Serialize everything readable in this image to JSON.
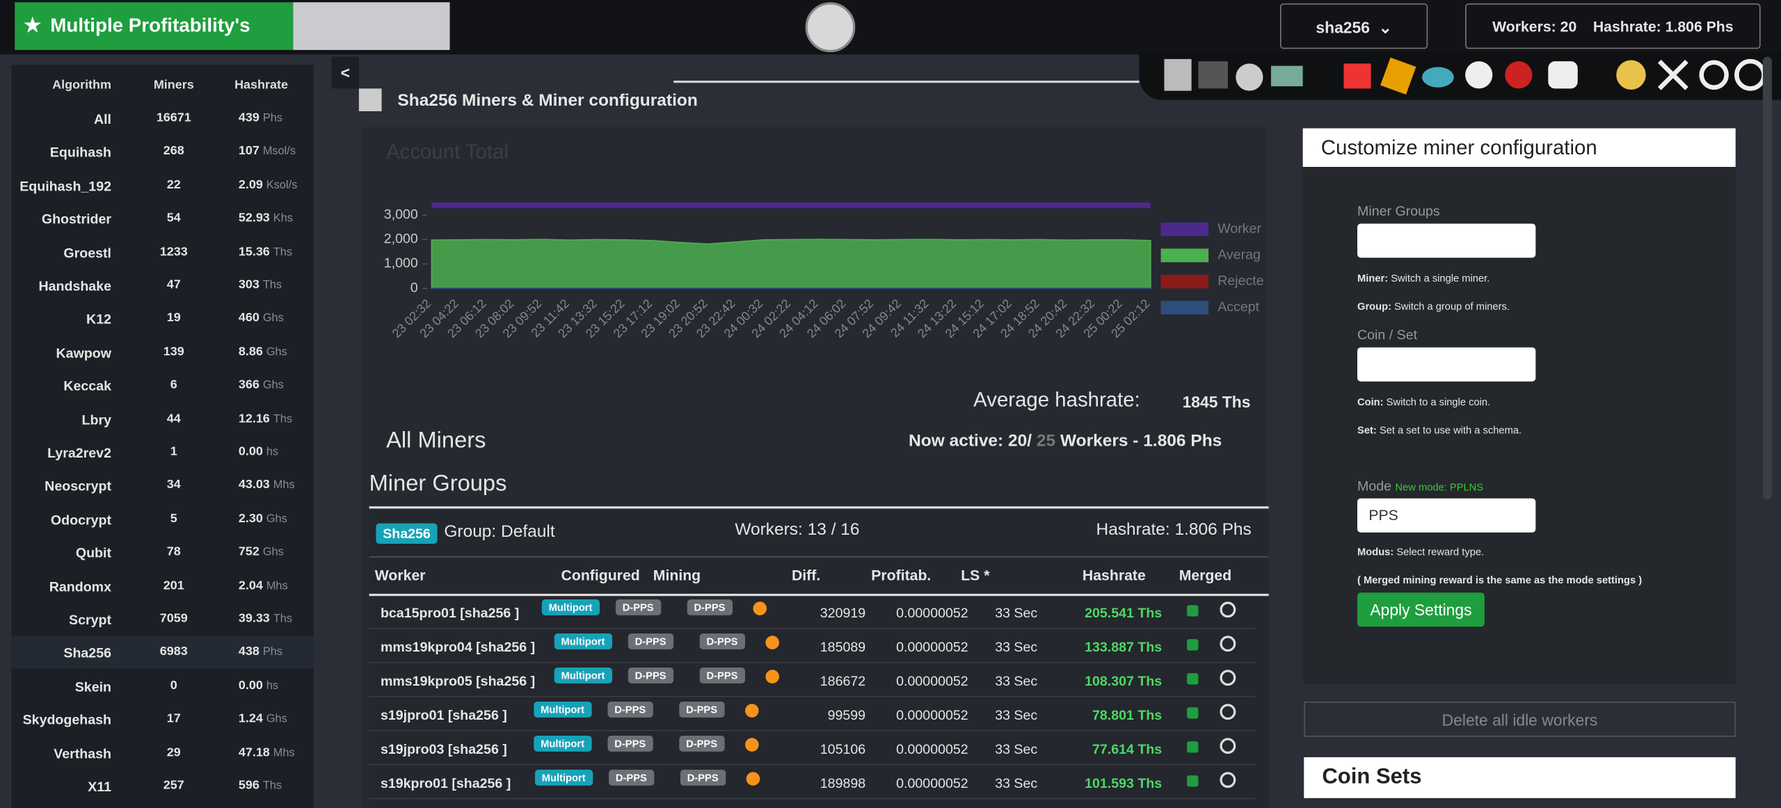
{
  "header": {
    "brand": "Multiple Profitability's BTC/",
    "algo_select": "sha256",
    "workers": "Workers: 20",
    "hashrate": "Hashrate: 1.806 Phs",
    "collapse": "<"
  },
  "sidebar": {
    "columns": [
      "Algorithm",
      "Miners",
      "Hashrate"
    ],
    "rows": [
      [
        "All",
        "16671",
        "439",
        "Phs"
      ],
      [
        "Equihash",
        "268",
        "107",
        "Msol/s"
      ],
      [
        "Equihash_192",
        "22",
        "2.09",
        "Ksol/s"
      ],
      [
        "Ghostrider",
        "54",
        "52.93",
        "Khs"
      ],
      [
        "Groestl",
        "1233",
        "15.36",
        "Ths"
      ],
      [
        "Handshake",
        "47",
        "303",
        "Ths"
      ],
      [
        "K12",
        "19",
        "460",
        "Ghs"
      ],
      [
        "Kawpow",
        "139",
        "8.86",
        "Ghs"
      ],
      [
        "Keccak",
        "6",
        "366",
        "Ghs"
      ],
      [
        "Lbry",
        "44",
        "12.16",
        "Ths"
      ],
      [
        "Lyra2rev2",
        "1",
        "0.00",
        "hs"
      ],
      [
        "Neoscrypt",
        "34",
        "43.03",
        "Mhs"
      ],
      [
        "Odocrypt",
        "5",
        "2.30",
        "Ghs"
      ],
      [
        "Qubit",
        "78",
        "752",
        "Ghs"
      ],
      [
        "Randomx",
        "201",
        "2.04",
        "Mhs"
      ],
      [
        "Scrypt",
        "7059",
        "39.33",
        "Ths"
      ],
      [
        "Sha256",
        "6983",
        "438",
        "Phs"
      ],
      [
        "Skein",
        "0",
        "0.00",
        "hs"
      ],
      [
        "Skydogehash",
        "17",
        "1.24",
        "Ghs"
      ],
      [
        "Verthash",
        "29",
        "47.18",
        "Mhs"
      ],
      [
        "X11",
        "257",
        "596",
        "Ths"
      ]
    ]
  },
  "section_title": "Sha256 Miners & Miner configuration",
  "chart_data": {
    "type": "area",
    "title": "Account Total",
    "categories": [
      "23 02:32",
      "23 04:22",
      "23 06:12",
      "23 08:02",
      "23 09:52",
      "23 11:42",
      "23 13:32",
      "23 15:22",
      "23 17:12",
      "23 19:02",
      "23 20:52",
      "23 22:42",
      "24 00:32",
      "24 02:22",
      "24 04:12",
      "24 06:02",
      "24 07:52",
      "24 09:42",
      "24 11:32",
      "24 13:22",
      "24 15:12",
      "24 17:02",
      "24 18:52",
      "24 20:42",
      "24 22:32",
      "25 00:22",
      "25 02:12"
    ],
    "series": [
      {
        "name": "Worker",
        "color": "#4b2a8c",
        "values": [
          3400,
          3400,
          3400,
          3400,
          3400,
          3400,
          3400,
          3400,
          3400,
          3400,
          3400,
          3400,
          3400,
          3400,
          3400,
          3400,
          3400,
          3400,
          3400,
          3400,
          3400,
          3400,
          3400,
          3400,
          3400,
          3400,
          3400
        ]
      },
      {
        "name": "Averag",
        "color": "#4caf50",
        "values": [
          1980,
          1990,
          2000,
          1990,
          2010,
          1980,
          2000,
          1990,
          1960,
          1880,
          1820,
          1900,
          1990,
          2000,
          2010,
          2000,
          1990,
          2000,
          2010,
          1990,
          2000,
          1990,
          2000,
          1980,
          1990,
          1990,
          1960
        ]
      },
      {
        "name": "Rejecte",
        "color": "#8b1a1a",
        "values": [
          0,
          0,
          0,
          0,
          0,
          0,
          0,
          0,
          0,
          0,
          0,
          0,
          0,
          0,
          0,
          0,
          0,
          0,
          0,
          0,
          0,
          0,
          0,
          0,
          0,
          0,
          0
        ]
      },
      {
        "name": "Accept",
        "color": "#2d4f7c",
        "values": [
          0,
          0,
          0,
          0,
          0,
          0,
          0,
          0,
          0,
          0,
          0,
          0,
          0,
          0,
          0,
          0,
          0,
          0,
          0,
          0,
          0,
          0,
          0,
          0,
          0,
          0,
          0
        ]
      }
    ],
    "ylim": [
      0,
      3500
    ],
    "yticks": [
      0,
      {
        "value": 1000,
        "label": "1,000"
      },
      {
        "value": 2000,
        "label": "2,000"
      },
      {
        "value": 3000,
        "label": "3,000"
      }
    ]
  },
  "summary": {
    "avg_label": "Average hashrate:",
    "avg_value": "1845 Ths",
    "all_miners": "All Miners",
    "active_a": "Now active: 20/",
    "active_b": "25",
    "active_c": "Workers - 1.806 Phs",
    "groups_title": "Miner Groups"
  },
  "group": {
    "badge": "Sha256",
    "name": "Group: Default",
    "workers": "Workers: 13 / 16",
    "hashrate": "Hashrate: 1.806 Phs",
    "columns": [
      "Worker",
      "Configured",
      "Mining",
      "Diff.",
      "Profitab.",
      "LS *",
      "Hashrate",
      "Merged"
    ],
    "rows": [
      [
        "bca15pro01 [sha256 ]",
        "Multiport",
        "D-PPS",
        "D-PPS",
        "320919",
        "0.00000052",
        "33 Sec",
        "205.541 Ths"
      ],
      [
        "mms19kpro04 [sha256 ]",
        "Multiport",
        "D-PPS",
        "D-PPS",
        "185089",
        "0.00000052",
        "33 Sec",
        "133.887 Ths"
      ],
      [
        "mms19kpro05 [sha256 ]",
        "Multiport",
        "D-PPS",
        "D-PPS",
        "186672",
        "0.00000052",
        "33 Sec",
        "108.307 Ths"
      ],
      [
        "s19jpro01 [sha256 ]",
        "Multiport",
        "D-PPS",
        "D-PPS",
        "99599",
        "0.00000052",
        "33 Sec",
        "78.801 Ths"
      ],
      [
        "s19jpro03 [sha256 ]",
        "Multiport",
        "D-PPS",
        "D-PPS",
        "105106",
        "0.00000052",
        "33 Sec",
        "77.614 Ths"
      ],
      [
        "s19kpro01 [sha256 ]",
        "Multiport",
        "D-PPS",
        "D-PPS",
        "189898",
        "0.00000052",
        "33 Sec",
        "101.593 Ths"
      ]
    ]
  },
  "config": {
    "title": "Customize miner configuration",
    "groups_label": "Miner Groups",
    "miner_k": "Miner:",
    "miner_v": "Switch a single miner.",
    "group_k": "Group:",
    "group_v": "Switch a group of miners.",
    "coin_label": "Coin / Set",
    "coin_k": "Coin:",
    "coin_v": "Switch to a single coin.",
    "set_k": "Set:",
    "set_v": "Set a set to use with a schema.",
    "mode_label": "Mode",
    "mode_new": "New mode: PPLNS",
    "mode_select": "PPS",
    "modus_k": "Modus:",
    "modus_v": "Select reward type.",
    "merged_note": "( Merged mining reward is the same as the mode settings )",
    "apply": "Apply Settings",
    "delete": "Delete all idle workers",
    "coin_sets": "Coin Sets"
  }
}
